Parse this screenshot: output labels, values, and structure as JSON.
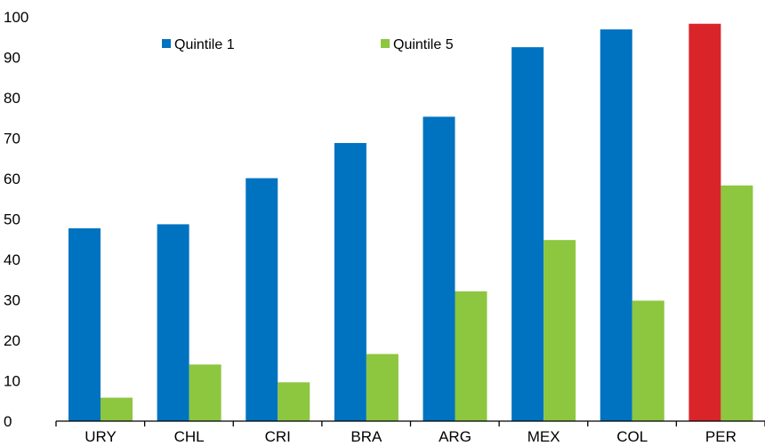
{
  "chart_data": {
    "type": "bar",
    "title": "",
    "xlabel": "",
    "ylabel": "",
    "ylim": [
      0,
      100
    ],
    "yticks": [
      0,
      10,
      20,
      30,
      40,
      50,
      60,
      70,
      80,
      90,
      100
    ],
    "grid": false,
    "legend_position": "top-left",
    "categories": [
      "URY",
      "CHL",
      "CRI",
      "BRA",
      "ARG",
      "MEX",
      "COL",
      "PER"
    ],
    "series": [
      {
        "name": "Quintile 1",
        "color": "#0073C0",
        "values": [
          47.7,
          48.7,
          60.1,
          68.8,
          75.3,
          92.5,
          96.9,
          98.3
        ]
      },
      {
        "name": "Quintile 5",
        "color": "#8DC63F",
        "values": [
          5.8,
          14.0,
          9.6,
          16.6,
          32.1,
          44.8,
          29.8,
          58.3
        ]
      }
    ],
    "highlight": {
      "category": "PER",
      "series": "Quintile 1",
      "color": "#D9252A"
    }
  }
}
